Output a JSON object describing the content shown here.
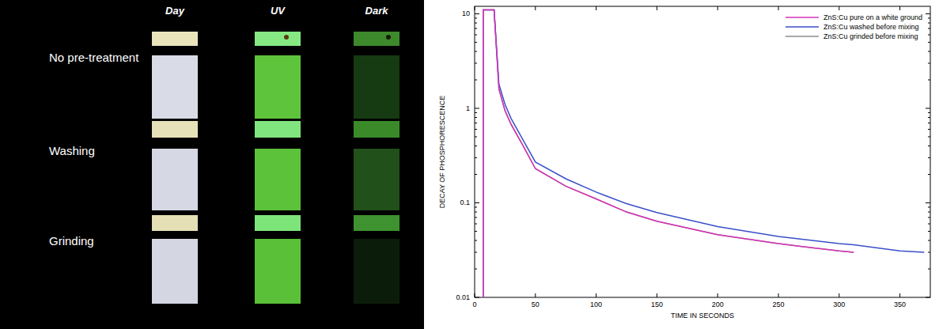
{
  "photo_grid": {
    "columns": [
      "Day",
      "UV",
      "Dark"
    ],
    "rows": [
      "No pre-treatment",
      "Washing",
      "Grinding"
    ]
  },
  "chart_data": {
    "type": "line",
    "xlabel": "TIME IN SECONDS",
    "ylabel": "DECAY OF PHOSPHORESCENCE",
    "x": [
      7,
      7,
      16,
      20,
      25,
      30,
      40,
      50,
      75,
      100,
      125,
      150,
      200,
      250,
      300,
      312,
      350,
      370
    ],
    "series": [
      {
        "name": "ZnS:Cu pure on a white ground",
        "color": "#d633b8",
        "values": [
          0.01,
          11,
          11,
          1.6,
          0.95,
          0.68,
          0.4,
          0.23,
          0.15,
          0.11,
          0.08,
          0.064,
          0.046,
          0.037,
          0.031,
          0.03,
          null,
          null
        ]
      },
      {
        "name": "ZnS:Cu washed before mixing",
        "color": "#3a4fc8",
        "values": [
          0.01,
          11,
          11,
          1.8,
          1.1,
          0.78,
          0.46,
          0.27,
          0.18,
          0.13,
          0.098,
          0.079,
          0.056,
          0.044,
          0.037,
          0.036,
          0.031,
          0.03
        ]
      },
      {
        "name": "ZnS:Cu grinded before mixing",
        "color": "#8c8c8c",
        "values": [
          0.01,
          11,
          11,
          1.6,
          0.94,
          0.67,
          0.4,
          0.23,
          0.15,
          0.11,
          0.08,
          0.064,
          0.046,
          0.037,
          0.031,
          0.03,
          null,
          null
        ]
      }
    ],
    "xlim": [
      0,
      375
    ],
    "xticks": [
      0,
      50,
      100,
      150,
      200,
      250,
      300,
      350
    ],
    "ylim": [
      0.01,
      12
    ],
    "yticks": [
      0.01,
      0.1,
      1,
      10
    ],
    "log": "y",
    "grid": false,
    "legend": "upper right"
  }
}
